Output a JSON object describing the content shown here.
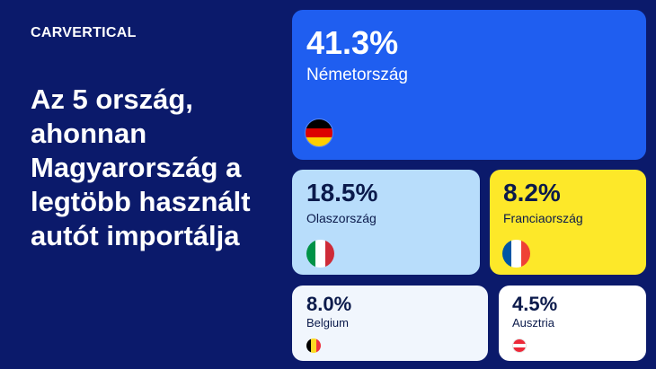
{
  "logo": "CARVERTICAL",
  "headline": "Az 5 ország, ahonnan Magyarország a legtöbb használt autót importálja",
  "countries": [
    {
      "percent": "41.3%",
      "name": "Németország",
      "flag": "germany-flag",
      "card_color": "#1f5ef0",
      "flag_colors": [
        "#000000",
        "#dd0000",
        "#ffce00"
      ]
    },
    {
      "percent": "18.5%",
      "name": "Olaszország",
      "flag": "italy-flag",
      "card_color": "#b8ddfb",
      "flag_colors": [
        "#009246",
        "#ffffff",
        "#ce2b37"
      ]
    },
    {
      "percent": "8.2%",
      "name": "Franciaország",
      "flag": "france-flag",
      "card_color": "#fde829",
      "flag_colors": [
        "#0055a4",
        "#ffffff",
        "#ef4135"
      ]
    },
    {
      "percent": "8.0%",
      "name": "Belgium",
      "flag": "belgium-flag",
      "card_color": "#f1f6fd",
      "flag_colors": [
        "#000000",
        "#fdda24",
        "#ef3340"
      ]
    },
    {
      "percent": "4.5%",
      "name": "Ausztria",
      "flag": "austria-flag",
      "card_color": "#ffffff",
      "flag_colors": [
        "#ed2939",
        "#ffffff",
        "#ed2939"
      ]
    }
  ],
  "colors": {
    "background": "#0b1a6b",
    "dark_text": "#0b1a4b"
  }
}
